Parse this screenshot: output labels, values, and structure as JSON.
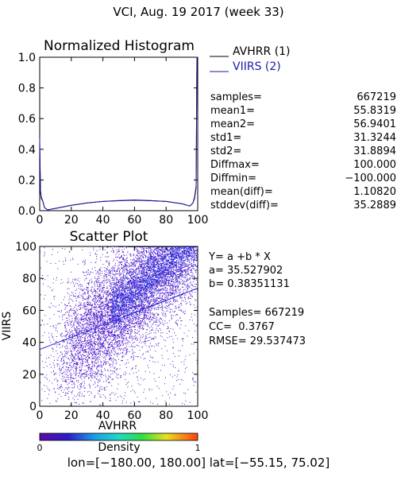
{
  "header": {
    "title": "VCI,  Aug. 19 2017 (week 33)"
  },
  "histogram": {
    "title": "Normalized Histogram",
    "yticks": [
      "1.0",
      "0.8",
      "0.6",
      "0.4",
      "0.2",
      "0.0"
    ],
    "xticks": [
      "0",
      "20",
      "40",
      "60",
      "80",
      "100"
    ],
    "legend": [
      {
        "label": "AVHRR (1)",
        "color": "#000000"
      },
      {
        "label": "VIIRS (2)",
        "color": "#1a1aa8"
      }
    ]
  },
  "stats": [
    {
      "label": "samples=",
      "value": "667219"
    },
    {
      "label": "mean1=",
      "value": "55.8319"
    },
    {
      "label": "mean2=",
      "value": "56.9401"
    },
    {
      "label": "std1=",
      "value": "31.3244"
    },
    {
      "label": "std2=",
      "value": "31.8894"
    },
    {
      "label": "Diffmax=",
      "value": "100.000"
    },
    {
      "label": "Diffmin=",
      "value": "−100.000"
    },
    {
      "label": "mean(diff)=",
      "value": "1.10820"
    },
    {
      "label": "stddev(diff)=",
      "value": "35.2889"
    }
  ],
  "scatter": {
    "title": "Scatter Plot",
    "xlabel": "AVHRR",
    "ylabel": "VIIRS",
    "xticks": [
      "0",
      "20",
      "40",
      "60",
      "80",
      "100"
    ],
    "yticks": [
      "100",
      "80",
      "60",
      "40",
      "20",
      "0"
    ]
  },
  "regression": {
    "equation": "Y= a +b * X",
    "a": "a= 35.527902",
    "b": "b= 0.38351131",
    "samples": "Samples= 667219",
    "cc": "CC=  0.3767",
    "rmse": "RMSE= 29.537473"
  },
  "colorbar": {
    "label": "Density",
    "min": "0",
    "max": "1"
  },
  "footer": {
    "extent": "lon=[−180.00, 180.00] lat=[−55.15, 75.02]"
  },
  "chart_data": [
    {
      "type": "line",
      "title": "Normalized Histogram",
      "xlim": [
        0,
        100
      ],
      "ylim": [
        0,
        1
      ],
      "series": [
        {
          "name": "AVHRR (1)",
          "color": "#000000",
          "x": [
            0,
            0.5,
            1,
            2,
            3,
            5,
            10,
            20,
            30,
            40,
            50,
            60,
            70,
            80,
            90,
            95,
            97,
            98,
            99,
            99.5,
            100
          ],
          "y": [
            0.44,
            0.12,
            0.08,
            0.06,
            0.02,
            0.005,
            0.015,
            0.035,
            0.05,
            0.06,
            0.065,
            0.068,
            0.065,
            0.06,
            0.045,
            0.03,
            0.05,
            0.08,
            0.15,
            0.98,
            1.0
          ]
        },
        {
          "name": "VIIRS (2)",
          "color": "#1a1aa8",
          "x": [
            0,
            0.5,
            1,
            2,
            3,
            5,
            10,
            20,
            30,
            40,
            50,
            60,
            70,
            80,
            90,
            95,
            97,
            98,
            99,
            99.5,
            100
          ],
          "y": [
            0.47,
            0.13,
            0.09,
            0.06,
            0.02,
            0.005,
            0.015,
            0.035,
            0.05,
            0.06,
            0.066,
            0.07,
            0.066,
            0.06,
            0.045,
            0.03,
            0.05,
            0.09,
            0.16,
            1.0,
            1.0
          ]
        }
      ]
    },
    {
      "type": "scatter",
      "title": "Scatter Plot",
      "xlabel": "AVHRR",
      "ylabel": "VIIRS",
      "xlim": [
        0,
        100
      ],
      "ylim": [
        0,
        100
      ],
      "regression": {
        "a": 35.527902,
        "b": 0.38351131
      },
      "samples": 667219,
      "cc": 0.3767,
      "rmse": 29.537473,
      "colorbar": {
        "label": "Density",
        "range": [
          0,
          1
        ]
      }
    }
  ]
}
